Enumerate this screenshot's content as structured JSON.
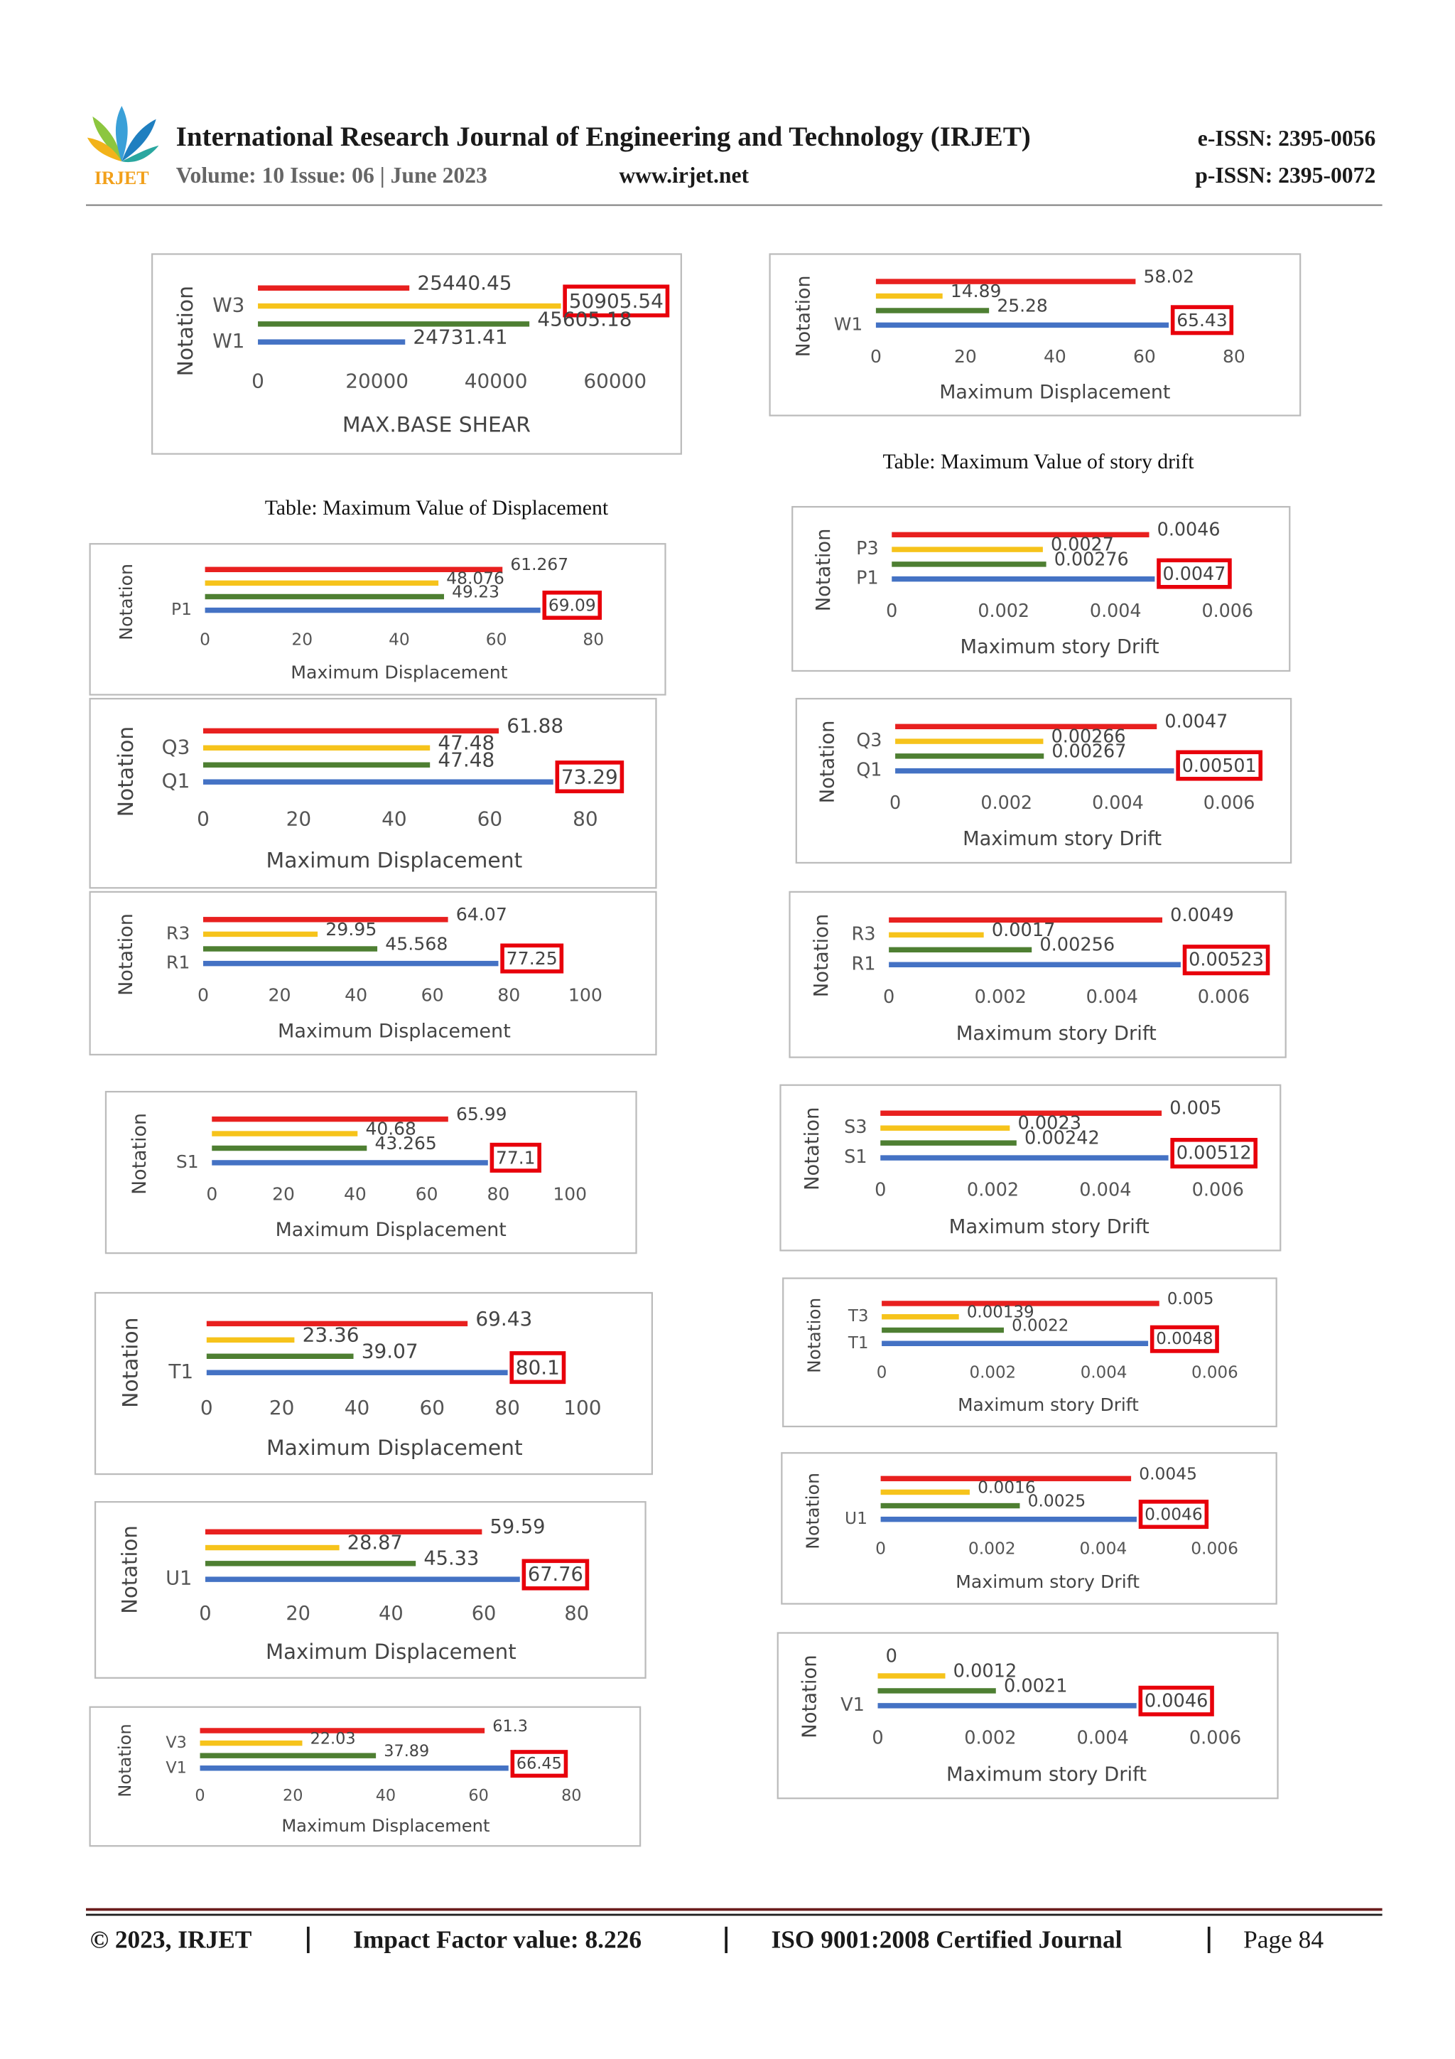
{
  "header": {
    "logo_text": "IRJET",
    "title": "International Research Journal of Engineering and Technology (IRJET)",
    "volume": "Volume: 10 Issue: 06 | June 2023",
    "url": "www.irjet.net",
    "eissn": "e-ISSN: 2395-0056",
    "pissn": "p-ISSN: 2395-0072"
  },
  "captions": {
    "drift": "Table: Maximum Value of story drift",
    "displacement": "Table: Maximum Value of Displacement"
  },
  "footer": {
    "copyright": "© 2023, IRJET",
    "impact": "Impact Factor value: 8.226",
    "iso": "ISO 9001:2008 Certified Journal",
    "page": "Page 84"
  },
  "chart_data": [
    {
      "type": "bar",
      "orientation": "horizontal",
      "categories": [
        null,
        "W3",
        null,
        "W1"
      ],
      "values": [
        25440.45,
        50905.54,
        45605.18,
        24731.41
      ],
      "colors": [
        "#e8201f",
        "#f6c31b",
        "#4e7f32",
        "#4472c4"
      ],
      "highlight": 1,
      "xlim": [
        0,
        60000
      ],
      "xticks": [
        0,
        20000,
        40000,
        60000
      ],
      "xlabel": "MAX.BASE SHEAR",
      "ylabel": "Notation"
    },
    {
      "type": "bar",
      "orientation": "horizontal",
      "categories": [
        null,
        null,
        null,
        "P1"
      ],
      "values": [
        61.267,
        48.076,
        49.23,
        69.09
      ],
      "colors": [
        "#e8201f",
        "#f6c31b",
        "#4e7f32",
        "#4472c4"
      ],
      "highlight": 3,
      "xlim": [
        0,
        80
      ],
      "xticks": [
        0,
        20,
        40,
        60,
        80
      ],
      "xlabel": "Maximum Displacement",
      "ylabel": "Notation"
    },
    {
      "type": "bar",
      "orientation": "horizontal",
      "categories": [
        null,
        "Q3",
        null,
        "Q1"
      ],
      "values": [
        61.88,
        47.48,
        47.48,
        73.29
      ],
      "colors": [
        "#e8201f",
        "#f6c31b",
        "#4e7f32",
        "#4472c4"
      ],
      "highlight": 3,
      "xlim": [
        0,
        80
      ],
      "xticks": [
        0,
        20,
        40,
        60,
        80
      ],
      "xlabel": "Maximum Displacement",
      "ylabel": "Notation"
    },
    {
      "type": "bar",
      "orientation": "horizontal",
      "categories": [
        null,
        "R3",
        null,
        "R1"
      ],
      "values": [
        64.07,
        29.95,
        45.568,
        77.25
      ],
      "colors": [
        "#e8201f",
        "#f6c31b",
        "#4e7f32",
        "#4472c4"
      ],
      "highlight": 3,
      "xlim": [
        0,
        100
      ],
      "xticks": [
        0,
        20,
        40,
        60,
        80,
        100
      ],
      "xlabel": "Maximum Displacement",
      "ylabel": "Notation"
    },
    {
      "type": "bar",
      "orientation": "horizontal",
      "categories": [
        null,
        null,
        null,
        "S1"
      ],
      "values": [
        65.99,
        40.68,
        43.265,
        77.1
      ],
      "colors": [
        "#e8201f",
        "#f6c31b",
        "#4e7f32",
        "#4472c4"
      ],
      "highlight": 3,
      "xlim": [
        0,
        100
      ],
      "xticks": [
        0,
        20,
        40,
        60,
        80,
        100
      ],
      "xlabel": "Maximum Displacement",
      "ylabel": "Notation"
    },
    {
      "type": "bar",
      "orientation": "horizontal",
      "categories": [
        null,
        null,
        null,
        "T1"
      ],
      "values": [
        69.43,
        23.36,
        39.07,
        80.1
      ],
      "colors": [
        "#e8201f",
        "#f6c31b",
        "#4e7f32",
        "#4472c4"
      ],
      "highlight": 3,
      "xlim": [
        0,
        100
      ],
      "xticks": [
        0,
        20,
        40,
        60,
        80,
        100
      ],
      "xlabel": "Maximum Displacement",
      "ylabel": "Notation"
    },
    {
      "type": "bar",
      "orientation": "horizontal",
      "categories": [
        null,
        null,
        null,
        "U1"
      ],
      "values": [
        59.59,
        28.87,
        45.33,
        67.76
      ],
      "colors": [
        "#e8201f",
        "#f6c31b",
        "#4e7f32",
        "#4472c4"
      ],
      "highlight": 3,
      "xlim": [
        0,
        80
      ],
      "xticks": [
        0,
        20,
        40,
        60,
        80
      ],
      "xlabel": "Maximum Displacement",
      "ylabel": "Notation"
    },
    {
      "type": "bar",
      "orientation": "horizontal",
      "categories": [
        null,
        "V3",
        null,
        "V1"
      ],
      "values": [
        61.3,
        22.03,
        37.89,
        66.45
      ],
      "colors": [
        "#e8201f",
        "#f6c31b",
        "#4e7f32",
        "#4472c4"
      ],
      "highlight": 3,
      "xlim": [
        0,
        80
      ],
      "xticks": [
        0,
        20,
        40,
        60,
        80
      ],
      "xlabel": "Maximum Displacement",
      "ylabel": "Notation"
    },
    {
      "type": "bar",
      "orientation": "horizontal",
      "categories": [
        null,
        null,
        null,
        "W1"
      ],
      "values": [
        58.02,
        14.89,
        25.28,
        65.43
      ],
      "colors": [
        "#e8201f",
        "#f6c31b",
        "#4e7f32",
        "#4472c4"
      ],
      "highlight": 3,
      "xlim": [
        0,
        80
      ],
      "xticks": [
        0,
        20,
        40,
        60,
        80
      ],
      "xlabel": "Maximum Displacement",
      "ylabel": "Notation"
    },
    {
      "type": "bar",
      "orientation": "horizontal",
      "categories": [
        null,
        "P3",
        null,
        "P1"
      ],
      "values": [
        0.0046,
        0.0027,
        0.00276,
        0.0047
      ],
      "colors": [
        "#e8201f",
        "#f6c31b",
        "#4e7f32",
        "#4472c4"
      ],
      "highlight": 3,
      "xlim": [
        0,
        0.006
      ],
      "xticks": [
        0,
        0.002,
        0.004,
        0.006
      ],
      "xlabel": "Maximum story Drift",
      "ylabel": "Notation"
    },
    {
      "type": "bar",
      "orientation": "horizontal",
      "categories": [
        null,
        "Q3",
        null,
        "Q1"
      ],
      "values": [
        0.0047,
        0.00266,
        0.00267,
        0.00501
      ],
      "colors": [
        "#e8201f",
        "#f6c31b",
        "#4e7f32",
        "#4472c4"
      ],
      "highlight": 3,
      "xlim": [
        0,
        0.006
      ],
      "xticks": [
        0,
        0.002,
        0.004,
        0.006
      ],
      "xlabel": "Maximum story Drift",
      "ylabel": "Notation"
    },
    {
      "type": "bar",
      "orientation": "horizontal",
      "categories": [
        null,
        "R3",
        null,
        "R1"
      ],
      "values": [
        0.0049,
        0.0017,
        0.00256,
        0.00523
      ],
      "colors": [
        "#e8201f",
        "#f6c31b",
        "#4e7f32",
        "#4472c4"
      ],
      "highlight": 3,
      "xlim": [
        0,
        0.006
      ],
      "xticks": [
        0,
        0.002,
        0.004,
        0.006
      ],
      "xlabel": "Maximum story Drift",
      "ylabel": "Notation"
    },
    {
      "type": "bar",
      "orientation": "horizontal",
      "categories": [
        null,
        "S3",
        null,
        "S1"
      ],
      "values": [
        0.005,
        0.0023,
        0.00242,
        0.00512
      ],
      "colors": [
        "#e8201f",
        "#f6c31b",
        "#4e7f32",
        "#4472c4"
      ],
      "highlight": 3,
      "xlim": [
        0,
        0.006
      ],
      "xticks": [
        0,
        0.002,
        0.004,
        0.006
      ],
      "xlabel": "Maximum story Drift",
      "ylabel": "Notation"
    },
    {
      "type": "bar",
      "orientation": "horizontal",
      "categories": [
        null,
        "T3",
        null,
        "T1"
      ],
      "values": [
        0.005,
        0.00139,
        0.0022,
        0.0048
      ],
      "colors": [
        "#e8201f",
        "#f6c31b",
        "#4e7f32",
        "#4472c4"
      ],
      "highlight": 3,
      "xlim": [
        0,
        0.006
      ],
      "xticks": [
        0,
        0.002,
        0.004,
        0.006
      ],
      "xlabel": "Maximum story Drift",
      "ylabel": "Notation"
    },
    {
      "type": "bar",
      "orientation": "horizontal",
      "categories": [
        null,
        null,
        null,
        "U1"
      ],
      "values": [
        0.0045,
        0.0016,
        0.0025,
        0.0046
      ],
      "colors": [
        "#e8201f",
        "#f6c31b",
        "#4e7f32",
        "#4472c4"
      ],
      "highlight": 3,
      "xlim": [
        0,
        0.006
      ],
      "xticks": [
        0,
        0.002,
        0.004,
        0.006
      ],
      "xlabel": "Maximum story Drift",
      "ylabel": "Notation"
    },
    {
      "type": "bar",
      "orientation": "horizontal",
      "categories": [
        null,
        null,
        null,
        "V1"
      ],
      "values": [
        0,
        0.0012,
        0.0021,
        0.0046
      ],
      "colors": [
        "#e8201f",
        "#f6c31b",
        "#4e7f32",
        "#4472c4"
      ],
      "highlight": 3,
      "xlim": [
        0,
        0.006
      ],
      "xticks": [
        0,
        0.002,
        0.004,
        0.006
      ],
      "xlabel": "Maximum story Drift",
      "ylabel": "Notation"
    }
  ]
}
